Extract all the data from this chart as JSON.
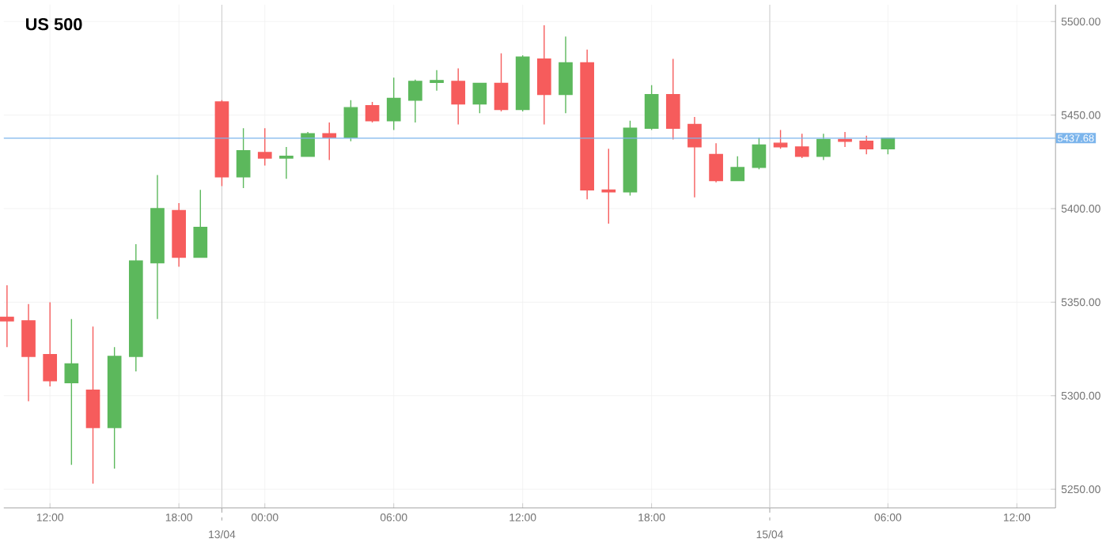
{
  "chart_data": {
    "type": "candlestick",
    "title": "US 500",
    "categories": [
      null,
      null,
      "12:00",
      null,
      null,
      null,
      null,
      null,
      "18:00",
      null,
      null,
      null,
      "00:00",
      null,
      null,
      null,
      null,
      null,
      "06:00",
      null,
      null,
      null,
      null,
      null,
      "12:00",
      null,
      null,
      null,
      null,
      null,
      "18:00",
      null,
      null,
      null,
      null,
      null,
      null,
      null,
      null,
      null,
      null,
      "06:00",
      null,
      null,
      null,
      null,
      null,
      "12:00"
    ],
    "ohlc": [
      [
        5342,
        5359,
        5326,
        5340
      ],
      [
        5340,
        5349,
        5297,
        5321
      ],
      [
        5322,
        5350,
        5305,
        5308
      ],
      [
        5307,
        5341,
        5263,
        5317
      ],
      [
        5303,
        5337,
        5253,
        5283
      ],
      [
        5283,
        5326,
        5261,
        5321
      ],
      [
        5321,
        5381,
        5313,
        5372
      ],
      [
        5371,
        5418,
        5341,
        5400
      ],
      [
        5399,
        5403,
        5369,
        5374
      ],
      [
        5374,
        5410,
        5374,
        5390
      ],
      [
        5457,
        5458,
        5412,
        5417
      ],
      [
        5417,
        5443,
        5411,
        5431
      ],
      [
        5430,
        5443,
        5423,
        5427
      ],
      [
        5427,
        5433,
        5416,
        5428
      ],
      [
        5428,
        5441,
        5428,
        5440
      ],
      [
        5440,
        5446,
        5426,
        5438
      ],
      [
        5438,
        5458,
        5436,
        5454
      ],
      [
        5455,
        5457,
        5446,
        5447
      ],
      [
        5447,
        5470,
        5442,
        5459
      ],
      [
        5458,
        5469,
        5446,
        5468
      ],
      [
        5467.5,
        5474,
        5463,
        5468.5
      ],
      [
        5468,
        5475,
        5445,
        5456
      ],
      [
        5456,
        5467,
        5451,
        5467
      ],
      [
        5467,
        5483,
        5452,
        5453
      ],
      [
        5453,
        5482,
        5452,
        5481
      ],
      [
        5480,
        5498,
        5445,
        5461
      ],
      [
        5461,
        5492,
        5451,
        5478
      ],
      [
        5478,
        5485,
        5405,
        5410
      ],
      [
        5410,
        5432,
        5392,
        5409
      ],
      [
        5409,
        5447,
        5407,
        5443
      ],
      [
        5443,
        5466,
        5442,
        5461
      ],
      [
        5461,
        5480,
        5437,
        5443
      ],
      [
        5445,
        5449,
        5406,
        5433
      ],
      [
        5429,
        5435,
        5414,
        5415
      ],
      [
        5415,
        5428,
        5415,
        5422
      ],
      [
        5422,
        5438,
        5421,
        5434
      ],
      [
        5435,
        5442,
        5432,
        5433
      ],
      [
        5433,
        5440,
        5427,
        5428
      ],
      [
        5428,
        5440,
        5426,
        5437
      ],
      [
        5437,
        5441,
        5433,
        5436
      ],
      [
        5436,
        5439,
        5429,
        5432
      ],
      [
        5432,
        5438,
        5429,
        5437.68
      ],
      null,
      null,
      null,
      null,
      null,
      null
    ],
    "colors": [
      "#f65c5c",
      "#f65c5c",
      "#f65c5c",
      "#5cb85c",
      "#f65c5c",
      "#5cb85c",
      "#5cb85c",
      "#5cb85c",
      "#f65c5c",
      "#5cb85c",
      "#f65c5c",
      "#5cb85c",
      "#f65c5c",
      "#5cb85c",
      "#5cb85c",
      "#f65c5c",
      "#5cb85c",
      "#f65c5c",
      "#5cb85c",
      "#5cb85c",
      "#5cb85c",
      "#f65c5c",
      "#5cb85c",
      "#f65c5c",
      "#5cb85c",
      "#f65c5c",
      "#5cb85c",
      "#f65c5c",
      "#f65c5c",
      "#5cb85c",
      "#5cb85c",
      "#f65c5c",
      "#f65c5c",
      "#f65c5c",
      "#5cb85c",
      "#5cb85c",
      "#f65c5c",
      "#f65c5c",
      "#5cb85c",
      "#f65c5c",
      "#f65c5c",
      "#5cb85c",
      null,
      null,
      null,
      null,
      null,
      null
    ],
    "ylim": [
      5240,
      5509
    ],
    "yticks": [
      {
        "value": 5250,
        "label": "5250.00"
      },
      {
        "value": 5300,
        "label": "5300.00"
      },
      {
        "value": 5350,
        "label": "5350.00"
      },
      {
        "value": 5400,
        "label": "5400.00"
      },
      {
        "value": 5450,
        "label": "5450.00"
      },
      {
        "value": 5500,
        "label": "5500.00"
      }
    ],
    "grid": true,
    "annotations": [
      "13/04",
      "15/04"
    ],
    "ref_lines": [
      {
        "axis": "y",
        "value": 5437.68,
        "label": "5437.68",
        "color": "#7cb5ec"
      }
    ]
  }
}
